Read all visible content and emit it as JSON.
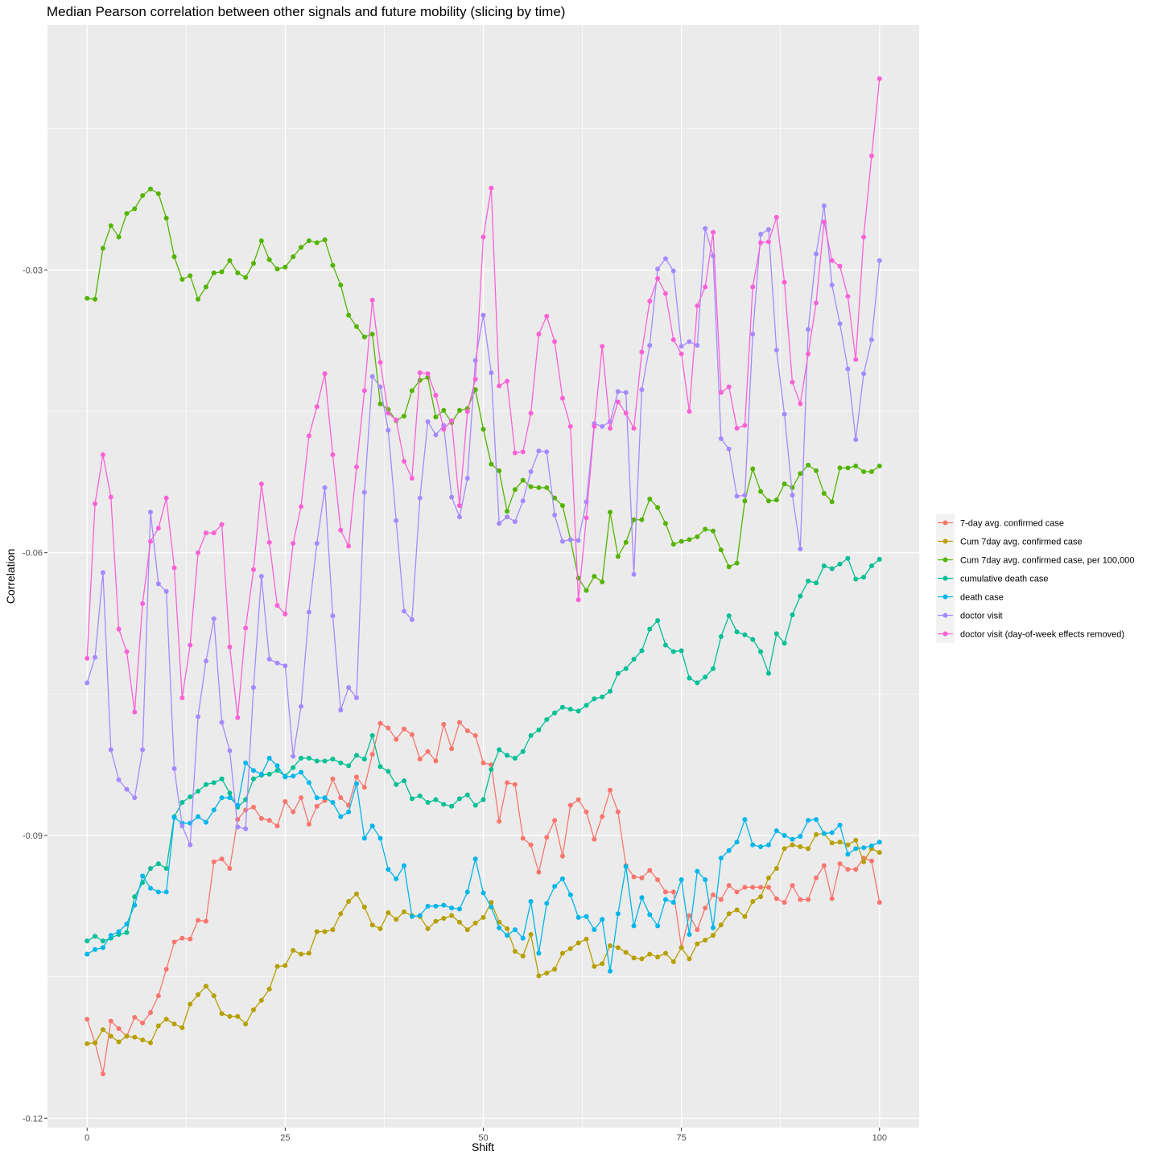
{
  "chart_data": {
    "type": "line",
    "title": "Median Pearson correlation between other signals and future mobility (slicing by time)",
    "xlabel": "Shift",
    "ylabel": "Correlation",
    "xlim": [
      -5,
      105
    ],
    "ylim": [
      -0.121,
      -0.004
    ],
    "x_ticks": [
      0,
      25,
      50,
      75,
      100
    ],
    "x_tick_labels": [
      "0",
      "25",
      "50",
      "75",
      "100"
    ],
    "y_ticks": [
      -0.12,
      -0.09,
      -0.06,
      -0.03
    ],
    "y_tick_labels": [
      "-0.12",
      "-0.09",
      "-0.06",
      "-0.03"
    ],
    "grid": true,
    "legend_position": "right",
    "x": [
      0,
      1,
      2,
      3,
      4,
      5,
      6,
      7,
      8,
      9,
      10,
      11,
      12,
      13,
      14,
      15,
      16,
      17,
      18,
      19,
      20,
      21,
      22,
      23,
      24,
      25,
      26,
      27,
      28,
      29,
      30,
      31,
      32,
      33,
      34,
      35,
      36,
      37,
      38,
      39,
      40,
      41,
      42,
      43,
      44,
      45,
      46,
      47,
      48,
      49,
      50,
      51,
      52,
      53,
      54,
      55,
      56,
      57,
      58,
      59,
      60,
      61,
      62,
      63,
      64,
      65,
      66,
      67,
      68,
      69,
      70,
      71,
      72,
      73,
      74,
      75,
      76,
      77,
      78,
      79,
      80,
      81,
      82,
      83,
      84,
      85,
      86,
      87,
      88,
      89,
      90,
      91,
      92,
      93,
      94,
      95,
      96,
      97,
      98,
      99,
      100
    ],
    "series": [
      {
        "name": "7-day avg. confirmed case",
        "color": "#F8766D",
        "values": [
          -0.1095,
          -0.112,
          -0.1153,
          -0.1097,
          -0.1105,
          -0.1113,
          -0.1093,
          -0.1099,
          -0.1088,
          -0.107,
          -0.1042,
          -0.1013,
          -0.1009,
          -0.101,
          -0.099,
          -0.0991,
          -0.0928,
          -0.0925,
          -0.0935,
          -0.0883,
          -0.0873,
          -0.087,
          -0.0882,
          -0.0884,
          -0.089,
          -0.0864,
          -0.0875,
          -0.086,
          -0.0888,
          -0.0869,
          -0.0863,
          -0.084,
          -0.086,
          -0.0868,
          -0.0838,
          -0.0849,
          -0.0814,
          -0.0781,
          -0.0786,
          -0.0798,
          -0.0787,
          -0.0793,
          -0.0819,
          -0.0811,
          -0.0821,
          -0.0782,
          -0.0808,
          -0.078,
          -0.0789,
          -0.0794,
          -0.0823,
          -0.0825,
          -0.0885,
          -0.0844,
          -0.0846,
          -0.0903,
          -0.091,
          -0.0939,
          -0.0902,
          -0.0884,
          -0.0922,
          -0.0868,
          -0.0862,
          -0.0875,
          -0.0904,
          -0.088,
          -0.0852,
          -0.0875,
          -0.0932,
          -0.0944,
          -0.0945,
          -0.0937,
          -0.0947,
          -0.096,
          -0.096,
          -0.1019,
          -0.0985,
          -0.1,
          -0.0977,
          -0.0963,
          -0.0968,
          -0.0953,
          -0.096,
          -0.0955,
          -0.0955,
          -0.0955,
          -0.0955,
          -0.0967,
          -0.0971,
          -0.0953,
          -0.0968,
          -0.0968,
          -0.0945,
          -0.0932,
          -0.0967,
          -0.093,
          -0.0936,
          -0.0936,
          -0.0924,
          -0.0927,
          -0.0971
        ]
      },
      {
        "name": "Cum 7day avg. confirmed case",
        "color": "#B79F00",
        "values": [
          -0.1121,
          -0.112,
          -0.1106,
          -0.1113,
          -0.1119,
          -0.1113,
          -0.1114,
          -0.1117,
          -0.112,
          -0.1102,
          -0.1095,
          -0.11,
          -0.1104,
          -0.1079,
          -0.1069,
          -0.106,
          -0.107,
          -0.1089,
          -0.1092,
          -0.1092,
          -0.11,
          -0.1085,
          -0.1075,
          -0.1063,
          -0.1039,
          -0.1038,
          -0.1022,
          -0.1026,
          -0.1025,
          -0.1002,
          -0.1002,
          -0.1,
          -0.0983,
          -0.097,
          -0.0962,
          -0.0976,
          -0.0995,
          -0.0999,
          -0.0982,
          -0.0989,
          -0.0981,
          -0.0985,
          -0.0986,
          -0.0999,
          -0.0991,
          -0.0988,
          -0.0985,
          -0.0992,
          -0.1,
          -0.0993,
          -0.0987,
          -0.0971,
          -0.0992,
          -0.0999,
          -0.1023,
          -0.1028,
          -0.1005,
          -0.1049,
          -0.1046,
          -0.1042,
          -0.1025,
          -0.102,
          -0.1014,
          -0.101,
          -0.1039,
          -0.1036,
          -0.1017,
          -0.1019,
          -0.1024,
          -0.103,
          -0.1031,
          -0.1026,
          -0.1029,
          -0.1025,
          -0.1034,
          -0.1019,
          -0.1031,
          -0.1015,
          -0.1011,
          -0.1006,
          -0.0995,
          -0.0983,
          -0.0979,
          -0.0986,
          -0.097,
          -0.0965,
          -0.0945,
          -0.0935,
          -0.0914,
          -0.091,
          -0.0912,
          -0.0914,
          -0.0899,
          -0.0898,
          -0.0908,
          -0.0907,
          -0.091,
          -0.0905,
          -0.0928,
          -0.0914,
          -0.0918
        ]
      },
      {
        "name": "Cum 7day avg. confirmed case, per 100,000",
        "color": "#53B400",
        "values": [
          -0.033,
          -0.0331,
          -0.0277,
          -0.0253,
          -0.0265,
          -0.024,
          -0.0235,
          -0.0221,
          -0.0214,
          -0.0219,
          -0.0245,
          -0.0286,
          -0.031,
          -0.0306,
          -0.0331,
          -0.0318,
          -0.0303,
          -0.0302,
          -0.029,
          -0.0303,
          -0.0308,
          -0.0293,
          -0.0269,
          -0.0289,
          -0.0299,
          -0.0297,
          -0.0286,
          -0.0276,
          -0.0269,
          -0.0271,
          -0.0268,
          -0.0295,
          -0.0316,
          -0.0348,
          -0.036,
          -0.0371,
          -0.0368,
          -0.0442,
          -0.0448,
          -0.046,
          -0.0455,
          -0.0428,
          -0.0417,
          -0.0414,
          -0.0456,
          -0.0449,
          -0.0462,
          -0.0449,
          -0.0447,
          -0.0427,
          -0.0469,
          -0.0506,
          -0.0513,
          -0.0556,
          -0.0533,
          -0.0523,
          -0.053,
          -0.0531,
          -0.0531,
          -0.0542,
          -0.055,
          -0.0586,
          -0.0627,
          -0.064,
          -0.0625,
          -0.0631,
          -0.0557,
          -0.0604,
          -0.0589,
          -0.0565,
          -0.0565,
          -0.0543,
          -0.0552,
          -0.0569,
          -0.0591,
          -0.0588,
          -0.0586,
          -0.0583,
          -0.0575,
          -0.0577,
          -0.0597,
          -0.0615,
          -0.0611,
          -0.0545,
          -0.0511,
          -0.0535,
          -0.0545,
          -0.0544,
          -0.0527,
          -0.0531,
          -0.0516,
          -0.0507,
          -0.0513,
          -0.0537,
          -0.0546,
          -0.051,
          -0.051,
          -0.0508,
          -0.0514,
          -0.0514,
          -0.0508
        ]
      },
      {
        "name": "cumulative death case",
        "color": "#00C094",
        "values": [
          -0.1012,
          -0.1007,
          -0.1012,
          -0.1009,
          -0.1005,
          -0.1003,
          -0.0965,
          -0.095,
          -0.0935,
          -0.093,
          -0.0935,
          -0.088,
          -0.0865,
          -0.0859,
          -0.0853,
          -0.0846,
          -0.0844,
          -0.084,
          -0.0855,
          -0.087,
          -0.0862,
          -0.084,
          -0.0836,
          -0.0835,
          -0.0831,
          -0.0837,
          -0.0828,
          -0.0818,
          -0.0818,
          -0.0821,
          -0.0821,
          -0.0819,
          -0.0823,
          -0.0826,
          -0.0815,
          -0.0819,
          -0.0794,
          -0.0827,
          -0.0832,
          -0.0846,
          -0.0842,
          -0.0861,
          -0.0858,
          -0.0865,
          -0.0862,
          -0.0867,
          -0.0869,
          -0.0861,
          -0.0857,
          -0.0868,
          -0.0862,
          -0.083,
          -0.0809,
          -0.0815,
          -0.0818,
          -0.0811,
          -0.0794,
          -0.0788,
          -0.0777,
          -0.077,
          -0.0764,
          -0.0766,
          -0.0768,
          -0.0762,
          -0.0755,
          -0.0753,
          -0.0747,
          -0.0728,
          -0.0723,
          -0.0713,
          -0.0704,
          -0.0681,
          -0.0672,
          -0.0698,
          -0.0705,
          -0.0704,
          -0.0733,
          -0.0738,
          -0.0732,
          -0.0723,
          -0.0689,
          -0.0667,
          -0.0684,
          -0.0687,
          -0.0692,
          -0.0705,
          -0.0728,
          -0.0686,
          -0.0696,
          -0.0666,
          -0.0646,
          -0.063,
          -0.0632,
          -0.0614,
          -0.0617,
          -0.0612,
          -0.0606,
          -0.0628,
          -0.0626,
          -0.0614,
          -0.0607
        ]
      },
      {
        "name": "death case",
        "color": "#00B6EB",
        "values": [
          -0.1026,
          -0.1021,
          -0.1019,
          -0.1006,
          -0.1002,
          -0.0994,
          -0.0974,
          -0.0943,
          -0.0956,
          -0.096,
          -0.096,
          -0.0881,
          -0.0887,
          -0.0887,
          -0.088,
          -0.0886,
          -0.0873,
          -0.086,
          -0.086,
          -0.0868,
          -0.0823,
          -0.0831,
          -0.0835,
          -0.0818,
          -0.0826,
          -0.0838,
          -0.0837,
          -0.0833,
          -0.0844,
          -0.086,
          -0.086,
          -0.0865,
          -0.088,
          -0.0875,
          -0.0845,
          -0.0903,
          -0.089,
          -0.0903,
          -0.0936,
          -0.0946,
          -0.0932,
          -0.0986,
          -0.0985,
          -0.0975,
          -0.0975,
          -0.0974,
          -0.0977,
          -0.0978,
          -0.096,
          -0.0925,
          -0.0961,
          -0.0976,
          -0.0998,
          -0.1006,
          -0.1,
          -0.1009,
          -0.097,
          -0.1025,
          -0.0972,
          -0.0954,
          -0.0946,
          -0.0963,
          -0.0987,
          -0.0986,
          -0.1,
          -0.0989,
          -0.1044,
          -0.0983,
          -0.0933,
          -0.0996,
          -0.0966,
          -0.0984,
          -0.0996,
          -0.0968,
          -0.0971,
          -0.0947,
          -0.1005,
          -0.0938,
          -0.0947,
          -0.0998,
          -0.0924,
          -0.0916,
          -0.0907,
          -0.0883,
          -0.091,
          -0.0912,
          -0.091,
          -0.0895,
          -0.09,
          -0.0904,
          -0.0901,
          -0.0884,
          -0.0883,
          -0.0898,
          -0.0897,
          -0.0889,
          -0.092,
          -0.0914,
          -0.0913,
          -0.0911,
          -0.0907
        ]
      },
      {
        "name": "doctor visit",
        "color": "#A58AFF",
        "values": [
          -0.0738,
          -0.0711,
          -0.0621,
          -0.0809,
          -0.0841,
          -0.0851,
          -0.086,
          -0.0809,
          -0.0557,
          -0.0633,
          -0.0641,
          -0.0829,
          -0.089,
          -0.091,
          -0.0774,
          -0.0715,
          -0.067,
          -0.078,
          -0.081,
          -0.0891,
          -0.0893,
          -0.0743,
          -0.0625,
          -0.0713,
          -0.0717,
          -0.072,
          -0.0816,
          -0.0763,
          -0.0663,
          -0.059,
          -0.0531,
          -0.0667,
          -0.0767,
          -0.0743,
          -0.0754,
          -0.0536,
          -0.0413,
          -0.0424,
          -0.047,
          -0.0566,
          -0.0662,
          -0.0671,
          -0.0542,
          -0.0461,
          -0.0475,
          -0.0465,
          -0.0541,
          -0.0562,
          -0.0521,
          -0.0396,
          -0.0348,
          -0.0409,
          -0.0569,
          -0.0562,
          -0.0567,
          -0.0545,
          -0.0514,
          -0.0492,
          -0.0493,
          -0.056,
          -0.0588,
          -0.0586,
          -0.0587,
          -0.0546,
          -0.0463,
          -0.0466,
          -0.0461,
          -0.0429,
          -0.043,
          -0.0623,
          -0.0427,
          -0.038,
          -0.0299,
          -0.0288,
          -0.0301,
          -0.0381,
          -0.0376,
          -0.038,
          -0.0256,
          -0.0285,
          -0.0479,
          -0.049,
          -0.054,
          -0.0539,
          -0.0368,
          -0.0262,
          -0.0257,
          -0.0385,
          -0.0453,
          -0.0539,
          -0.0596,
          -0.0363,
          -0.0283,
          -0.0232,
          -0.0316,
          -0.0357,
          -0.0405,
          -0.048,
          -0.041,
          -0.0374,
          -0.029
        ]
      },
      {
        "name": "doctor visit (day-of-week effects removed)",
        "color": "#FB61D7",
        "values": [
          -0.0712,
          -0.0548,
          -0.0496,
          -0.0541,
          -0.0681,
          -0.0705,
          -0.0769,
          -0.0654,
          -0.0588,
          -0.0574,
          -0.0542,
          -0.0616,
          -0.0754,
          -0.0698,
          -0.06,
          -0.0579,
          -0.0579,
          -0.057,
          -0.07,
          -0.0775,
          -0.068,
          -0.0618,
          -0.0527,
          -0.0589,
          -0.0656,
          -0.0665,
          -0.059,
          -0.0551,
          -0.0476,
          -0.0445,
          -0.041,
          -0.0496,
          -0.0576,
          -0.0593,
          -0.0509,
          -0.0428,
          -0.0332,
          -0.0398,
          -0.0452,
          -0.0459,
          -0.0503,
          -0.0521,
          -0.0409,
          -0.041,
          -0.0433,
          -0.0469,
          -0.046,
          -0.055,
          -0.045,
          -0.0416,
          -0.0265,
          -0.0213,
          -0.0423,
          -0.0418,
          -0.0494,
          -0.0493,
          -0.0452,
          -0.0368,
          -0.0349,
          -0.0376,
          -0.0436,
          -0.0466,
          -0.065,
          -0.0563,
          -0.0466,
          -0.0381,
          -0.0468,
          -0.044,
          -0.0452,
          -0.0468,
          -0.0387,
          -0.0333,
          -0.0309,
          -0.0325,
          -0.0374,
          -0.0389,
          -0.045,
          -0.0338,
          -0.0318,
          -0.026,
          -0.043,
          -0.0424,
          -0.0468,
          -0.0465,
          -0.0318,
          -0.0271,
          -0.027,
          -0.0244,
          -0.0313,
          -0.0419,
          -0.0442,
          -0.0389,
          -0.0335,
          -0.0249,
          -0.029,
          -0.0296,
          -0.0328,
          -0.0395,
          -0.0265,
          -0.0179,
          -0.0097
        ]
      }
    ]
  }
}
